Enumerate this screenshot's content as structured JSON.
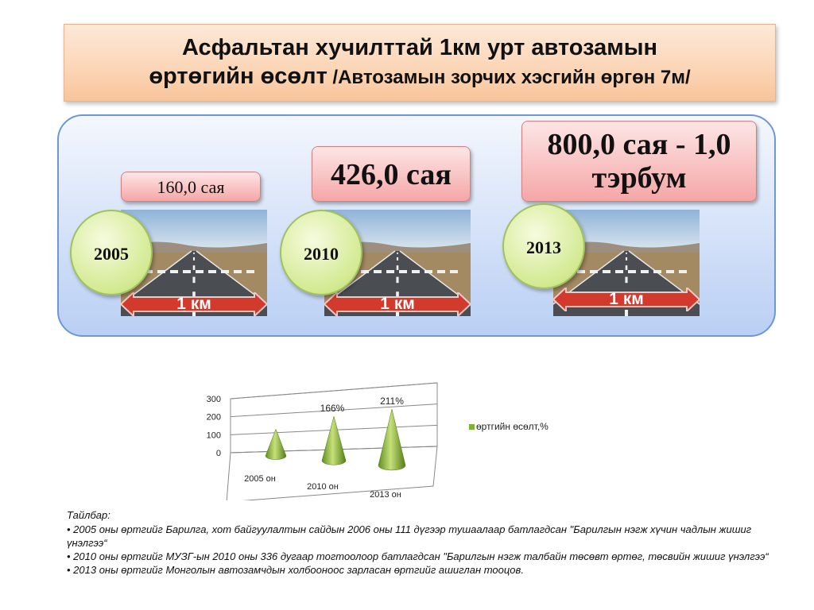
{
  "title": {
    "line1": "Асфальтан хучилттай 1км урт автозамын",
    "line2_main": "өртөгийн өсөлт",
    "line2_sub": " /Автозамын зорчих хэсгийн өргөн 7м/"
  },
  "items": [
    {
      "year": "2005",
      "cost": "160,0 сая",
      "distance": "1 км"
    },
    {
      "year": "2010",
      "cost": "426,0 сая",
      "distance": "1 км"
    },
    {
      "year": "2013",
      "cost_line1": "800,0 сая - 1,0",
      "cost_line2": "тэрбум",
      "distance": "1 км"
    }
  ],
  "chart_data": {
    "type": "bar",
    "style": "3d-cone",
    "categories": [
      "2005 он",
      "2010 он",
      "2013 он"
    ],
    "series": [
      {
        "name": "өртгийн өсөлт,%",
        "values": [
          100,
          166,
          211
        ],
        "color": "#7fb038"
      }
    ],
    "data_labels": [
      "",
      "166%",
      "211%"
    ],
    "yticks": [
      "0",
      "100",
      "200",
      "300"
    ],
    "ylim": [
      0,
      300
    ],
    "grid": true,
    "legend": "right"
  },
  "notes": {
    "title": "Тайлбар:",
    "items": [
      "•  2005 оны өртгийг  Барилга, хот байгуулалтын сайдын 2006 оны 111 дүгээр тушаалаар батлагдсан \"Барилгын нэгж хүчин чадлын жишиг үнэлгээ“",
      "•  2010 оны өртгийг МУЗГ-ын 2010 оны 336 дугаар тогтоолоор батлагдсан \"Барилгын нэгж талбайн төсөвт өртөг, төсвийн жишиг үнэлгээ“",
      "• 2013 оны өртгийг Монголын автозамчдын холбооноос зарласан өртгийг ашиглан тооцов."
    ]
  }
}
